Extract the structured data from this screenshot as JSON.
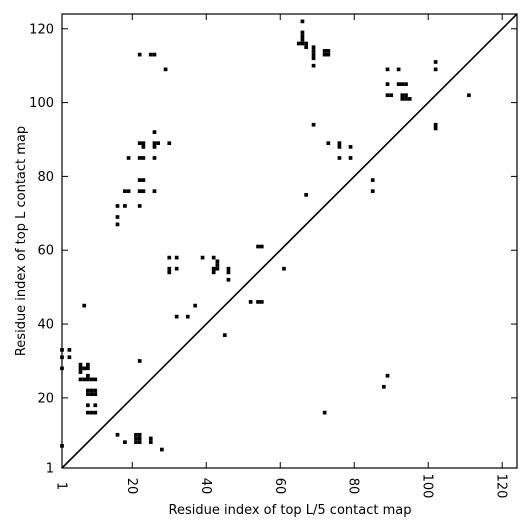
{
  "chart_data": {
    "type": "heatmap",
    "title": "",
    "xlabel": "Residue index of top L/5 contact map",
    "ylabel": "Residue index of top L contact map",
    "xlim": [
      1,
      124
    ],
    "ylim": [
      1,
      124
    ],
    "x_ticks": [
      1,
      20,
      40,
      60,
      80,
      100,
      120
    ],
    "y_ticks": [
      1,
      20,
      40,
      60,
      80,
      100,
      120
    ],
    "x_tick_rotation": -90,
    "diagonal_line": true,
    "grid": false,
    "legend": "none",
    "colors": {
      "contact": "#000000",
      "background": "#ffffff",
      "line": "#000000"
    },
    "contacts_upper_left": [
      [
        66,
        122
      ],
      [
        65,
        116
      ],
      [
        66,
        116
      ],
      [
        67,
        116
      ],
      [
        66,
        117
      ],
      [
        66,
        118
      ],
      [
        66,
        119
      ],
      [
        67,
        115
      ],
      [
        69,
        115
      ],
      [
        69,
        114
      ],
      [
        69,
        113
      ],
      [
        69,
        112
      ],
      [
        72,
        114
      ],
      [
        73,
        114
      ],
      [
        72,
        113
      ],
      [
        73,
        113
      ],
      [
        69,
        110
      ],
      [
        22,
        113
      ],
      [
        25,
        113
      ],
      [
        26,
        113
      ],
      [
        29,
        109
      ],
      [
        89,
        109
      ],
      [
        92,
        109
      ],
      [
        102,
        111
      ],
      [
        102,
        109
      ],
      [
        89,
        105
      ],
      [
        92,
        105
      ],
      [
        93,
        105
      ],
      [
        94,
        105
      ],
      [
        89,
        102
      ],
      [
        90,
        102
      ],
      [
        93,
        102
      ],
      [
        94,
        102
      ],
      [
        93,
        101
      ],
      [
        94,
        101
      ],
      [
        95,
        101
      ],
      [
        111,
        102
      ],
      [
        102,
        94
      ],
      [
        102,
        93
      ],
      [
        69,
        94
      ],
      [
        73,
        89
      ],
      [
        76,
        89
      ],
      [
        76,
        88
      ],
      [
        79,
        88
      ],
      [
        76,
        85
      ],
      [
        79,
        85
      ],
      [
        26,
        92
      ],
      [
        22,
        89
      ],
      [
        23,
        89
      ],
      [
        26,
        89
      ],
      [
        27,
        89
      ],
      [
        30,
        89
      ],
      [
        23,
        88
      ],
      [
        26,
        88
      ],
      [
        22,
        85
      ],
      [
        23,
        85
      ],
      [
        26,
        85
      ],
      [
        19,
        85
      ],
      [
        22,
        79
      ],
      [
        23,
        79
      ],
      [
        18,
        76
      ],
      [
        19,
        76
      ],
      [
        22,
        76
      ],
      [
        23,
        76
      ],
      [
        26,
        76
      ],
      [
        16,
        72
      ],
      [
        18,
        72
      ],
      [
        22,
        72
      ],
      [
        16,
        69
      ],
      [
        16,
        67
      ],
      [
        85,
        79
      ],
      [
        85,
        76
      ],
      [
        67,
        75
      ],
      [
        30,
        58
      ],
      [
        32,
        58
      ],
      [
        39,
        58
      ],
      [
        42,
        58
      ],
      [
        30,
        55
      ],
      [
        32,
        55
      ],
      [
        30,
        54
      ],
      [
        43,
        57
      ],
      [
        43,
        56
      ],
      [
        42,
        55
      ],
      [
        43,
        55
      ],
      [
        46,
        55
      ],
      [
        42,
        54
      ],
      [
        46,
        54
      ],
      [
        46,
        52
      ],
      [
        54,
        61
      ],
      [
        55,
        61
      ],
      [
        61,
        55
      ],
      [
        52,
        46
      ],
      [
        54,
        46
      ],
      [
        55,
        46
      ],
      [
        7,
        45
      ],
      [
        37,
        45
      ],
      [
        32,
        42
      ],
      [
        35,
        42
      ],
      [
        45,
        37
      ],
      [
        1,
        33
      ],
      [
        3,
        33
      ],
      [
        1,
        31
      ],
      [
        3,
        31
      ],
      [
        1,
        28
      ],
      [
        6,
        29
      ],
      [
        6,
        28
      ],
      [
        6,
        27
      ],
      [
        7,
        28
      ],
      [
        8,
        28
      ],
      [
        8,
        29
      ],
      [
        6,
        25
      ],
      [
        7,
        25
      ],
      [
        8,
        25
      ],
      [
        9,
        25
      ],
      [
        10,
        25
      ],
      [
        8,
        26
      ],
      [
        22,
        30
      ],
      [
        8,
        22
      ],
      [
        9,
        22
      ],
      [
        10,
        22
      ],
      [
        8,
        21
      ],
      [
        9,
        21
      ],
      [
        10,
        21
      ],
      [
        8,
        18
      ],
      [
        10,
        18
      ],
      [
        8,
        16
      ],
      [
        9,
        16
      ],
      [
        10,
        16
      ],
      [
        89,
        26
      ],
      [
        88,
        23
      ],
      [
        72,
        16
      ]
    ],
    "contacts_lower_right": [
      [
        1,
        7
      ],
      [
        16,
        10
      ],
      [
        18,
        8
      ],
      [
        21,
        10
      ],
      [
        22,
        10
      ],
      [
        21,
        9
      ],
      [
        22,
        9
      ],
      [
        21,
        8
      ],
      [
        22,
        8
      ],
      [
        25,
        9
      ],
      [
        25,
        8
      ],
      [
        28,
        6
      ]
    ]
  }
}
